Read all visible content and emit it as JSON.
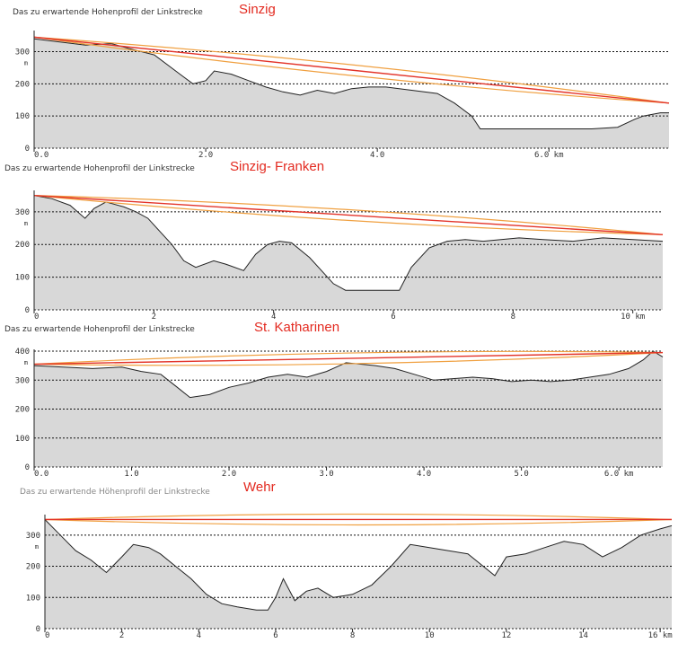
{
  "caption": "Das zu erwartende Hohenprofil der Linkstrecke",
  "caption_alt": "Das zu erwartende Höhenprofil der Linkstrecke",
  "colors": {
    "title": "#e32a20",
    "link_line": "#e3342a",
    "fresnel": "#f0a040",
    "terrain_fill": "#d8d8d8",
    "grid": "#111111"
  },
  "chart_data": [
    {
      "type": "area",
      "title": "Sinzig",
      "caption": "Das zu erwartende Hohenprofil der Linkstrecke",
      "ylabel": "m",
      "xlabel": "km",
      "ylim": [
        0,
        360
      ],
      "xlim": [
        0,
        7.4
      ],
      "y_ticks": [
        100,
        200,
        300
      ],
      "x_ticks": [
        0,
        2,
        4,
        6
      ],
      "x_tick_labels": [
        "0.0",
        "2.0",
        "4.0",
        "6.0 km"
      ],
      "link": {
        "start": 345,
        "end": 140
      },
      "x": [
        0,
        0.3,
        0.6,
        0.9,
        1.1,
        1.4,
        1.7,
        1.85,
        2.0,
        2.1,
        2.3,
        2.5,
        2.7,
        2.9,
        3.1,
        3.3,
        3.5,
        3.7,
        3.9,
        4.1,
        4.4,
        4.7,
        4.9,
        5.1,
        5.2,
        5.35,
        5.6,
        5.9,
        6.2,
        6.5,
        6.8,
        7.0,
        7.1,
        7.3,
        7.4
      ],
      "values": [
        340,
        330,
        320,
        325,
        310,
        290,
        230,
        200,
        210,
        240,
        230,
        210,
        190,
        175,
        165,
        180,
        170,
        185,
        190,
        190,
        180,
        170,
        140,
        100,
        60,
        60,
        60,
        60,
        60,
        60,
        65,
        90,
        100,
        110,
        110
      ]
    },
    {
      "type": "area",
      "title": "Sinzig- Franken",
      "caption": "Das zu erwartende Hohenprofil der Linkstrecke",
      "ylabel": "m",
      "xlabel": "km",
      "ylim": [
        0,
        360
      ],
      "xlim": [
        0,
        10.5
      ],
      "y_ticks": [
        100,
        200,
        300
      ],
      "x_ticks": [
        0,
        2,
        4,
        6,
        8,
        10
      ],
      "x_tick_labels": [
        "0",
        "2",
        "4",
        "6",
        "8",
        "10 km"
      ],
      "link": {
        "start": 350,
        "end": 230
      },
      "x": [
        0,
        0.3,
        0.6,
        0.85,
        1.0,
        1.2,
        1.5,
        1.7,
        1.9,
        2.1,
        2.3,
        2.5,
        2.7,
        3.0,
        3.2,
        3.5,
        3.7,
        3.9,
        4.1,
        4.3,
        4.6,
        4.8,
        5.0,
        5.2,
        5.5,
        5.8,
        6.1,
        6.3,
        6.6,
        6.9,
        7.2,
        7.5,
        7.8,
        8.1,
        8.5,
        9.0,
        9.5,
        10.0,
        10.5
      ],
      "values": [
        350,
        340,
        320,
        280,
        310,
        330,
        315,
        300,
        280,
        240,
        200,
        150,
        130,
        150,
        140,
        120,
        170,
        200,
        210,
        205,
        160,
        120,
        80,
        60,
        60,
        60,
        60,
        130,
        190,
        210,
        215,
        210,
        215,
        220,
        215,
        210,
        220,
        215,
        210
      ]
    },
    {
      "type": "area",
      "title": "St. Katharinen",
      "caption": "Das zu erwartende Hohenprofil der Linkstrecke",
      "ylabel": "m",
      "xlabel": "km",
      "ylim": [
        0,
        400
      ],
      "xlim": [
        0,
        6.45
      ],
      "y_ticks": [
        100,
        200,
        300,
        400
      ],
      "x_ticks": [
        0,
        1,
        2,
        3,
        4,
        5,
        6
      ],
      "x_tick_labels": [
        "0.0",
        "1.0",
        "2.0",
        "3.0",
        "4.0",
        "5.0",
        "6.0 km"
      ],
      "link": {
        "start": 355,
        "end": 395
      },
      "x": [
        0,
        0.3,
        0.6,
        0.9,
        1.1,
        1.3,
        1.45,
        1.6,
        1.8,
        2.0,
        2.2,
        2.4,
        2.6,
        2.8,
        3.0,
        3.2,
        3.35,
        3.5,
        3.7,
        3.9,
        4.1,
        4.3,
        4.5,
        4.7,
        4.9,
        5.1,
        5.3,
        5.5,
        5.7,
        5.9,
        6.1,
        6.25,
        6.35,
        6.45
      ],
      "values": [
        350,
        345,
        340,
        345,
        330,
        320,
        280,
        240,
        250,
        275,
        290,
        310,
        320,
        310,
        330,
        360,
        355,
        350,
        340,
        320,
        300,
        305,
        310,
        305,
        295,
        300,
        295,
        300,
        310,
        320,
        340,
        370,
        400,
        380
      ]
    },
    {
      "type": "area",
      "title": "Wehr",
      "caption": "Das zu erwartende Höhenprofil der Linkstrecke",
      "ylabel": "m",
      "xlabel": "km",
      "ylim": [
        0,
        360
      ],
      "xlim": [
        0,
        16.3
      ],
      "y_ticks": [
        100,
        200,
        300
      ],
      "x_ticks": [
        0,
        2,
        4,
        6,
        8,
        10,
        12,
        14,
        16
      ],
      "x_tick_labels": [
        "0",
        "2",
        "4",
        "6",
        "8",
        "10",
        "12",
        "14",
        "16 km"
      ],
      "link": {
        "start": 350,
        "end": 350
      },
      "x": [
        0,
        0.4,
        0.8,
        1.2,
        1.6,
        2.0,
        2.3,
        2.7,
        3.0,
        3.4,
        3.8,
        4.2,
        4.6,
        5.0,
        5.5,
        5.8,
        6.0,
        6.2,
        6.5,
        6.8,
        7.1,
        7.5,
        8.0,
        8.5,
        9.0,
        9.5,
        10.0,
        10.5,
        11.0,
        11.4,
        11.7,
        12.0,
        12.5,
        13.0,
        13.5,
        14.0,
        14.5,
        15.0,
        15.5,
        16.0,
        16.3
      ],
      "values": [
        350,
        300,
        250,
        220,
        180,
        230,
        270,
        260,
        240,
        200,
        160,
        110,
        80,
        70,
        60,
        60,
        100,
        160,
        90,
        120,
        130,
        100,
        110,
        140,
        200,
        270,
        260,
        250,
        240,
        200,
        170,
        230,
        240,
        260,
        280,
        270,
        230,
        260,
        300,
        320,
        330
      ]
    }
  ]
}
